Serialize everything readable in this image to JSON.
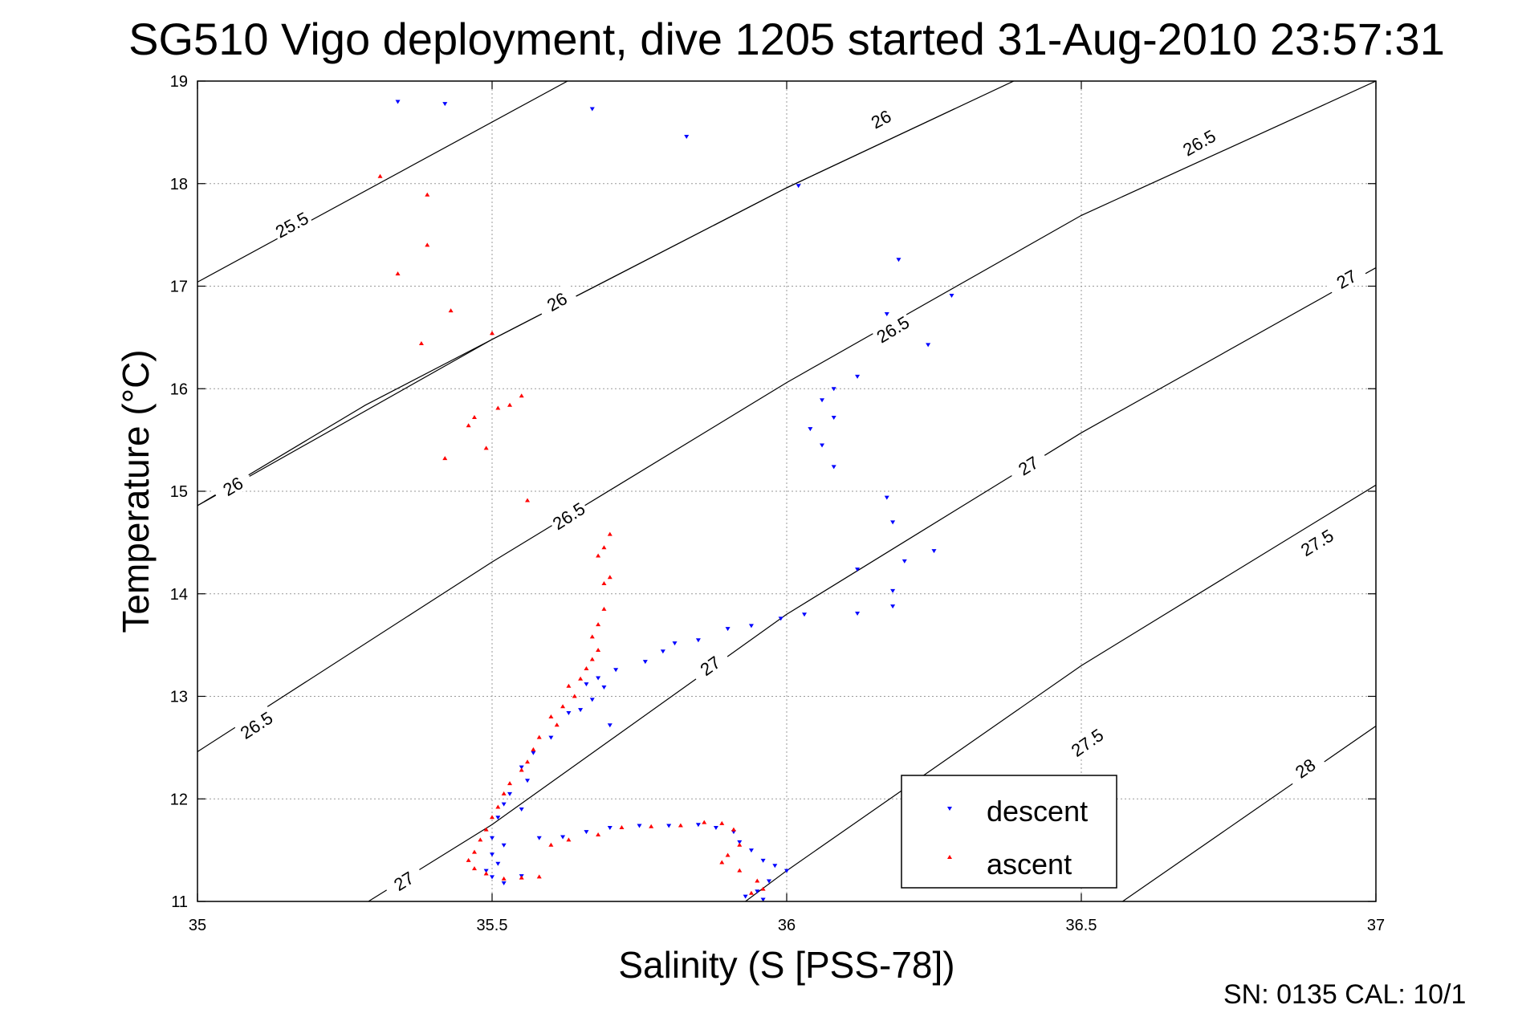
{
  "chart_data": {
    "type": "scatter",
    "title": "SG510 Vigo deployment, dive 1205 started 31-Aug-2010 23:57:31",
    "xlabel": "Salinity (S [PSS-78])",
    "ylabel": "Temperature (°C)",
    "xlim": [
      35,
      37
    ],
    "ylim": [
      11,
      19
    ],
    "x_ticks": [
      35,
      35.5,
      36,
      36.5,
      37
    ],
    "x_tick_labels": [
      "35",
      "35.5",
      "36",
      "36.5",
      "37"
    ],
    "y_ticks": [
      11,
      12,
      13,
      14,
      15,
      16,
      17,
      18,
      19
    ],
    "y_tick_labels": [
      "11",
      "12",
      "13",
      "14",
      "15",
      "16",
      "17",
      "18",
      "19"
    ],
    "grid": true,
    "legend_position": "bottom-right",
    "footer": "SN: 0135  CAL: 10/1",
    "isopycnals": [
      {
        "label": "25.5",
        "points": [
          [
            35.0,
            17.04
          ],
          [
            35.628,
            19.0
          ]
        ],
        "label_at": [
          35.16,
          17.6
        ]
      },
      {
        "label": "26",
        "points": [
          [
            35.0,
            14.86
          ],
          [
            35.285,
            15.84
          ],
          [
            35.5,
            16.48
          ],
          [
            36.0,
            17.96
          ],
          [
            36.5,
            19.31
          ]
        ],
        "label_at": [
          35.06,
          15.05
        ]
      },
      {
        "label": "26",
        "points": [
          [
            35.0,
            14.86
          ],
          [
            35.5,
            16.48
          ],
          [
            36.0,
            17.96
          ],
          [
            36.285,
            18.73
          ]
        ],
        "label_at": [
          35.61,
          16.85
        ]
      },
      {
        "label": "26",
        "points": [
          [
            35.0,
            14.86
          ],
          [
            35.5,
            16.48
          ],
          [
            36.0,
            17.96
          ],
          [
            36.285,
            18.73
          ]
        ],
        "label_at": [
          36.16,
          18.63
        ]
      },
      {
        "label": "26.5",
        "points": [
          [
            35.0,
            12.46
          ],
          [
            35.5,
            14.31
          ],
          [
            36.0,
            16.06
          ],
          [
            36.5,
            17.69
          ],
          [
            37.0,
            19.0
          ]
        ],
        "label_at": [
          35.1,
          12.72
        ]
      },
      {
        "label": "26.5",
        "points": [
          [
            35.0,
            12.46
          ],
          [
            35.5,
            14.31
          ],
          [
            36.0,
            16.06
          ],
          [
            36.5,
            17.69
          ],
          [
            37.0,
            19.0
          ]
        ],
        "label_at": [
          35.63,
          14.76
        ]
      },
      {
        "label": "26.5",
        "points": [
          [
            35.0,
            12.46
          ],
          [
            35.5,
            14.31
          ],
          [
            36.0,
            16.06
          ],
          [
            36.5,
            17.69
          ],
          [
            37.0,
            19.0
          ]
        ],
        "label_at": [
          36.18,
          16.58
        ]
      },
      {
        "label": "26.5",
        "points": [
          [
            35.0,
            12.46
          ],
          [
            35.5,
            14.31
          ],
          [
            36.0,
            16.06
          ],
          [
            36.5,
            17.69
          ],
          [
            37.0,
            19.0
          ]
        ],
        "label_at": [
          36.7,
          18.4
        ]
      },
      {
        "label": "27",
        "points": [
          [
            35.29,
            11.0
          ],
          [
            35.5,
            11.75
          ],
          [
            36.0,
            13.8
          ],
          [
            36.5,
            15.57
          ],
          [
            37.0,
            17.18
          ]
        ],
        "label_at": [
          35.35,
          11.2
        ]
      },
      {
        "label": "27",
        "points": [
          [
            35.29,
            11.0
          ],
          [
            35.5,
            11.75
          ],
          [
            36.0,
            13.8
          ],
          [
            36.5,
            15.57
          ],
          [
            37.0,
            17.18
          ]
        ],
        "label_at": [
          35.87,
          13.3
        ]
      },
      {
        "label": "27",
        "points": [
          [
            35.29,
            11.0
          ],
          [
            35.5,
            11.75
          ],
          [
            36.0,
            13.8
          ],
          [
            36.5,
            15.57
          ],
          [
            37.0,
            17.18
          ]
        ],
        "label_at": [
          36.41,
          15.25
        ]
      },
      {
        "label": "27",
        "points": [
          [
            35.29,
            11.0
          ],
          [
            35.5,
            11.75
          ],
          [
            36.0,
            13.8
          ],
          [
            36.5,
            15.57
          ],
          [
            37.0,
            17.18
          ]
        ],
        "label_at": [
          36.95,
          17.07
        ]
      },
      {
        "label": "27.5",
        "points": [
          [
            35.93,
            11.0
          ],
          [
            36.0,
            11.3
          ],
          [
            36.5,
            13.3
          ],
          [
            37.0,
            15.06
          ]
        ],
        "label_at": [
          36.51,
          12.55
        ]
      },
      {
        "label": "27.5",
        "points": [
          [
            35.93,
            11.0
          ],
          [
            36.0,
            11.3
          ],
          [
            36.5,
            13.3
          ],
          [
            37.0,
            15.06
          ]
        ],
        "label_at": [
          36.9,
          14.5
        ]
      },
      {
        "label": "28",
        "points": [
          [
            36.57,
            11.0
          ],
          [
            37.0,
            12.71
          ]
        ],
        "label_at": [
          36.88,
          12.3
        ]
      }
    ],
    "series": [
      {
        "name": "descent",
        "color": "#0000ff",
        "marker": "triangle-down",
        "points": [
          [
            35.34,
            18.8
          ],
          [
            35.42,
            18.78
          ],
          [
            35.67,
            18.73
          ],
          [
            35.83,
            18.46
          ],
          [
            36.02,
            17.98
          ],
          [
            36.19,
            17.26
          ],
          [
            36.28,
            16.91
          ],
          [
            36.17,
            16.73
          ],
          [
            36.24,
            16.43
          ],
          [
            36.12,
            16.12
          ],
          [
            36.08,
            16.0
          ],
          [
            36.06,
            15.89
          ],
          [
            36.08,
            15.72
          ],
          [
            36.04,
            15.61
          ],
          [
            36.06,
            15.45
          ],
          [
            36.08,
            15.24
          ],
          [
            36.17,
            14.94
          ],
          [
            36.18,
            14.7
          ],
          [
            36.2,
            14.32
          ],
          [
            36.25,
            14.42
          ],
          [
            36.12,
            14.24
          ],
          [
            36.18,
            14.03
          ],
          [
            36.18,
            13.88
          ],
          [
            36.12,
            13.81
          ],
          [
            36.03,
            13.8
          ],
          [
            35.99,
            13.76
          ],
          [
            35.94,
            13.69
          ],
          [
            35.9,
            13.66
          ],
          [
            35.85,
            13.55
          ],
          [
            35.81,
            13.52
          ],
          [
            35.79,
            13.44
          ],
          [
            35.76,
            13.34
          ],
          [
            35.71,
            13.26
          ],
          [
            35.68,
            13.18
          ],
          [
            35.66,
            13.12
          ],
          [
            35.69,
            13.09
          ],
          [
            35.67,
            12.97
          ],
          [
            35.65,
            12.87
          ],
          [
            35.7,
            12.72
          ],
          [
            35.63,
            12.84
          ],
          [
            35.6,
            12.6
          ],
          [
            35.57,
            12.45
          ],
          [
            35.55,
            12.31
          ],
          [
            35.56,
            12.18
          ],
          [
            35.53,
            12.05
          ],
          [
            35.52,
            11.95
          ],
          [
            35.55,
            11.9
          ],
          [
            35.51,
            11.82
          ],
          [
            35.5,
            11.62
          ],
          [
            35.52,
            11.55
          ],
          [
            35.5,
            11.46
          ],
          [
            35.51,
            11.37
          ],
          [
            35.49,
            11.3
          ],
          [
            35.5,
            11.24
          ],
          [
            35.52,
            11.18
          ],
          [
            35.55,
            11.25
          ],
          [
            35.58,
            11.62
          ],
          [
            35.62,
            11.63
          ],
          [
            35.66,
            11.68
          ],
          [
            35.7,
            11.72
          ],
          [
            35.75,
            11.74
          ],
          [
            35.8,
            11.74
          ],
          [
            35.85,
            11.75
          ],
          [
            35.88,
            11.72
          ],
          [
            35.91,
            11.68
          ],
          [
            35.92,
            11.58
          ],
          [
            35.94,
            11.5
          ],
          [
            35.96,
            11.4
          ],
          [
            35.98,
            11.35
          ],
          [
            36.0,
            11.3
          ],
          [
            35.97,
            11.2
          ],
          [
            35.95,
            11.1
          ],
          [
            35.93,
            11.05
          ],
          [
            35.96,
            11.02
          ]
        ]
      },
      {
        "name": "ascent",
        "color": "#ff0000",
        "marker": "triangle-up",
        "points": [
          [
            35.31,
            18.07
          ],
          [
            35.39,
            17.89
          ],
          [
            35.39,
            17.4
          ],
          [
            35.34,
            17.12
          ],
          [
            35.43,
            16.76
          ],
          [
            35.38,
            16.44
          ],
          [
            35.5,
            16.54
          ],
          [
            35.55,
            15.93
          ],
          [
            35.53,
            15.84
          ],
          [
            35.51,
            15.81
          ],
          [
            35.47,
            15.72
          ],
          [
            35.46,
            15.64
          ],
          [
            35.49,
            15.42
          ],
          [
            35.42,
            15.32
          ],
          [
            35.56,
            14.91
          ],
          [
            35.7,
            14.58
          ],
          [
            35.69,
            14.45
          ],
          [
            35.68,
            14.37
          ],
          [
            35.7,
            14.16
          ],
          [
            35.69,
            14.1
          ],
          [
            35.69,
            13.85
          ],
          [
            35.68,
            13.7
          ],
          [
            35.67,
            13.58
          ],
          [
            35.68,
            13.45
          ],
          [
            35.67,
            13.36
          ],
          [
            35.66,
            13.27
          ],
          [
            35.65,
            13.17
          ],
          [
            35.63,
            13.1
          ],
          [
            35.64,
            13.0
          ],
          [
            35.62,
            12.9
          ],
          [
            35.6,
            12.8
          ],
          [
            35.61,
            12.72
          ],
          [
            35.58,
            12.6
          ],
          [
            35.57,
            12.48
          ],
          [
            35.56,
            12.36
          ],
          [
            35.55,
            12.28
          ],
          [
            35.53,
            12.15
          ],
          [
            35.52,
            12.05
          ],
          [
            35.51,
            11.92
          ],
          [
            35.5,
            11.82
          ],
          [
            35.49,
            11.7
          ],
          [
            35.48,
            11.6
          ],
          [
            35.47,
            11.48
          ],
          [
            35.46,
            11.4
          ],
          [
            35.47,
            11.32
          ],
          [
            35.49,
            11.27
          ],
          [
            35.52,
            11.22
          ],
          [
            35.55,
            11.23
          ],
          [
            35.58,
            11.24
          ],
          [
            35.6,
            11.55
          ],
          [
            35.63,
            11.6
          ],
          [
            35.68,
            11.65
          ],
          [
            35.72,
            11.72
          ],
          [
            35.77,
            11.73
          ],
          [
            35.82,
            11.74
          ],
          [
            35.86,
            11.77
          ],
          [
            35.89,
            11.76
          ],
          [
            35.91,
            11.7
          ],
          [
            35.92,
            11.55
          ],
          [
            35.9,
            11.45
          ],
          [
            35.89,
            11.38
          ],
          [
            35.92,
            11.3
          ],
          [
            35.95,
            11.2
          ],
          [
            35.96,
            11.12
          ],
          [
            35.94,
            11.08
          ]
        ]
      }
    ]
  }
}
